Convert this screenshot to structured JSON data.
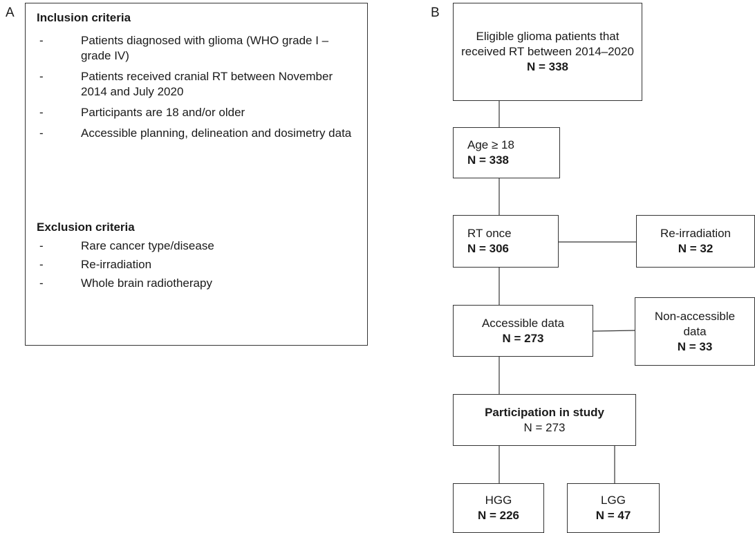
{
  "panel_a": {
    "label": "A",
    "inclusion_title": "Inclusion criteria",
    "inclusion": [
      "Patients diagnosed with glioma (WHO grade I – grade IV)",
      "Patients received cranial RT between November 2014 and July 2020",
      "Participants are 18 and/or older",
      "Accessible planning, delineation and dosimetry data"
    ],
    "exclusion_title": "Exclusion criteria",
    "exclusion": [
      "Rare cancer type/disease",
      "Re-irradiation",
      "Whole brain radiotherapy"
    ],
    "bullet": "-"
  },
  "panel_b": {
    "label": "B",
    "eligible": {
      "text1": "Eligible glioma patients that",
      "text2": "received RT between 2014–2020",
      "n": "N = 338"
    },
    "age": {
      "text": "Age ≥ 18",
      "n": "N = 338"
    },
    "rt_once": {
      "text": "RT once",
      "n": "N = 306"
    },
    "reirradiation": {
      "text": "Re-irradiation",
      "n": "N = 32"
    },
    "accessible": {
      "text": "Accessible data",
      "n": "N = 273"
    },
    "non_accessible": {
      "text1": "Non-accessible",
      "text2": "data",
      "n": "N = 33"
    },
    "participation": {
      "text": "Participation in study",
      "n": "N = 273"
    },
    "hgg": {
      "text": "HGG",
      "n": "N = 226"
    },
    "lgg": {
      "text": "LGG",
      "n": "N = 47"
    }
  }
}
